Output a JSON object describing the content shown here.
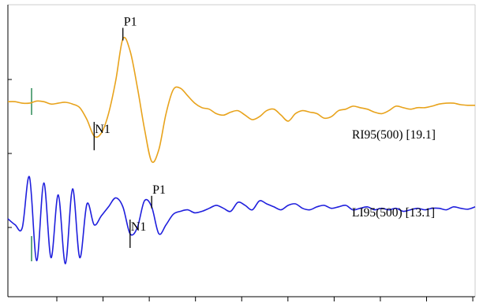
{
  "chart_data": {
    "type": "line",
    "title": "",
    "xlabel": "",
    "ylabel": "",
    "grid": false,
    "x_tick_count": 10,
    "y_tick_count": 3,
    "colors": {
      "frame": "#cccccc",
      "axis": "#000000",
      "marker": "#000000",
      "stim_marker": "#2e8b57"
    },
    "series": [
      {
        "name": "RI95(500) [19.1]",
        "color": "#e8a31c",
        "y": [
          0.1,
          0.1,
          0.05,
          0.05,
          0.12,
          0.1,
          0.02,
          0.05,
          0.08,
          0.02,
          -0.1,
          -0.5,
          -1.05,
          -0.95,
          -0.3,
          0.8,
          2.2,
          1.8,
          0.6,
          -0.8,
          -1.9,
          -1.5,
          -0.3,
          0.5,
          0.55,
          0.3,
          0.05,
          -0.1,
          -0.15,
          -0.3,
          -0.35,
          -0.25,
          -0.2,
          -0.35,
          -0.5,
          -0.4,
          -0.2,
          -0.15,
          -0.35,
          -0.55,
          -0.3,
          -0.2,
          -0.25,
          -0.3,
          -0.45,
          -0.4,
          -0.2,
          -0.15,
          -0.05,
          -0.1,
          -0.15,
          -0.25,
          -0.3,
          -0.2,
          -0.05,
          -0.1,
          -0.15,
          -0.1,
          -0.1,
          -0.05,
          0.02,
          0.05,
          0.05,
          0.0,
          -0.02,
          -0.02
        ],
        "peaks": [
          {
            "label": "N1",
            "index": 12
          },
          {
            "label": "P1",
            "index": 16
          }
        ]
      },
      {
        "name": "LI95(500) [13.1]",
        "color": "#1f1fdd",
        "y": [
          0.0,
          -0.2,
          -0.3,
          1.4,
          -1.4,
          1.2,
          -1.3,
          0.8,
          -1.5,
          1.0,
          -1.3,
          0.5,
          -0.2,
          0.1,
          0.4,
          0.7,
          0.4,
          -0.5,
          -0.3,
          0.6,
          0.4,
          -0.5,
          -0.2,
          0.15,
          0.25,
          0.3,
          0.2,
          0.25,
          0.35,
          0.45,
          0.35,
          0.25,
          0.55,
          0.45,
          0.3,
          0.6,
          0.5,
          0.4,
          0.3,
          0.45,
          0.5,
          0.35,
          0.3,
          0.4,
          0.45,
          0.35,
          0.4,
          0.45,
          0.3,
          0.35,
          0.4,
          0.3,
          0.35,
          0.3,
          0.35,
          0.25,
          0.3,
          0.35,
          0.3,
          0.35,
          0.35,
          0.3,
          0.4,
          0.35,
          0.32,
          0.4
        ],
        "peaks": [
          {
            "label": "N1",
            "index": 17
          },
          {
            "label": "P1",
            "index": 20
          }
        ]
      }
    ]
  }
}
